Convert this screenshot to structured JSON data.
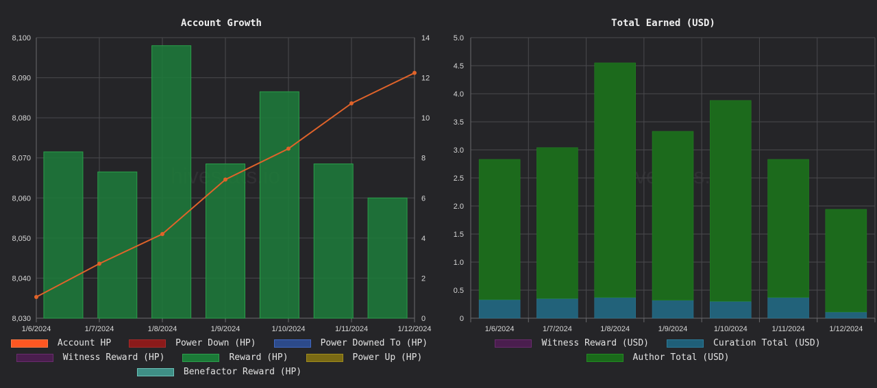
{
  "watermark": "hivestats.io",
  "charts": {
    "account_growth": {
      "title": "Account Growth",
      "legend": [
        {
          "label": "Account HP",
          "fill": "#ff5722",
          "border": "#ff7a45"
        },
        {
          "label": "Power Down (HP)",
          "fill": "#8b1a1a",
          "border": "#a52a2a"
        },
        {
          "label": "Power Downed To (HP)",
          "fill": "#2c4a8a",
          "border": "#4169c4"
        },
        {
          "label": "Witness Reward (HP)",
          "fill": "#4a1e4e",
          "border": "#6a2c6e"
        },
        {
          "label": "Reward (HP)",
          "fill": "#1b7a37",
          "border": "#2e9e4e"
        },
        {
          "label": "Power Up (HP)",
          "fill": "#7a6a14",
          "border": "#a08c1e"
        },
        {
          "label": "Benefactor Reward (HP)",
          "fill": "#3f8f86",
          "border": "#6cc2b8"
        }
      ]
    },
    "total_earned": {
      "title": "Total Earned (USD)",
      "legend": [
        {
          "label": "Witness Reward (USD)",
          "fill": "#4a1e4e",
          "border": "#6a2c6e"
        },
        {
          "label": "Curation Total (USD)",
          "fill": "#1f5f78",
          "border": "#2c7c9a"
        },
        {
          "label": "Author Total (USD)",
          "fill": "#1a6a1a",
          "border": "#238a23"
        }
      ]
    }
  },
  "chart_data": [
    {
      "type": "bar",
      "title": "Account Growth",
      "categories": [
        "1/6/2024",
        "1/7/2024",
        "1/8/2024",
        "1/9/2024",
        "1/10/2024",
        "1/11/2024",
        "1/12/2024"
      ],
      "y_left": {
        "ylim": [
          8030,
          8100
        ],
        "ticks": [
          "8,030",
          "8,040",
          "8,050",
          "8,060",
          "8,070",
          "8,080",
          "8,090",
          "8,100"
        ]
      },
      "y_right": {
        "ylim": [
          0,
          14
        ],
        "ticks": [
          "0",
          "2",
          "4",
          "6",
          "8",
          "10",
          "12",
          "14"
        ]
      },
      "series": [
        {
          "name": "Reward (HP)",
          "kind": "bar",
          "axis": "right",
          "color": "#1e7a3a",
          "values": [
            8.3,
            7.3,
            13.6,
            7.7,
            11.3,
            7.7,
            6.0
          ]
        },
        {
          "name": "Account HP",
          "kind": "line",
          "axis": "left",
          "color": "#e0632a",
          "x_positions": [
            "1/6/2024",
            "1/7/2024",
            "1/8/2024",
            "1/9/2024",
            "1/10/2024",
            "1/11/2024",
            "1/12/2024"
          ],
          "values": [
            8035.3,
            8043.6,
            8051.0,
            8064.6,
            8072.3,
            8083.6,
            8091.2
          ]
        }
      ],
      "grid": true,
      "legend_position": "bottom"
    },
    {
      "type": "bar",
      "title": "Total Earned (USD)",
      "stacked": true,
      "categories": [
        "1/6/2024",
        "1/7/2024",
        "1/8/2024",
        "1/9/2024",
        "1/10/2024",
        "1/11/2024",
        "1/12/2024"
      ],
      "ylim": [
        0,
        5.0
      ],
      "yticks": [
        "0",
        "0.5",
        "1.0",
        "1.5",
        "2.0",
        "2.5",
        "3.0",
        "3.5",
        "4.0",
        "4.5",
        "5.0"
      ],
      "series": [
        {
          "name": "Curation Total (USD)",
          "color": "#22627a",
          "values": [
            0.33,
            0.35,
            0.37,
            0.32,
            0.3,
            0.37,
            0.11
          ]
        },
        {
          "name": "Author Total (USD)",
          "color": "#1c6a1c",
          "values": [
            2.5,
            2.69,
            4.18,
            3.01,
            3.58,
            2.46,
            1.83
          ]
        }
      ],
      "grid": true,
      "legend_position": "bottom"
    }
  ]
}
